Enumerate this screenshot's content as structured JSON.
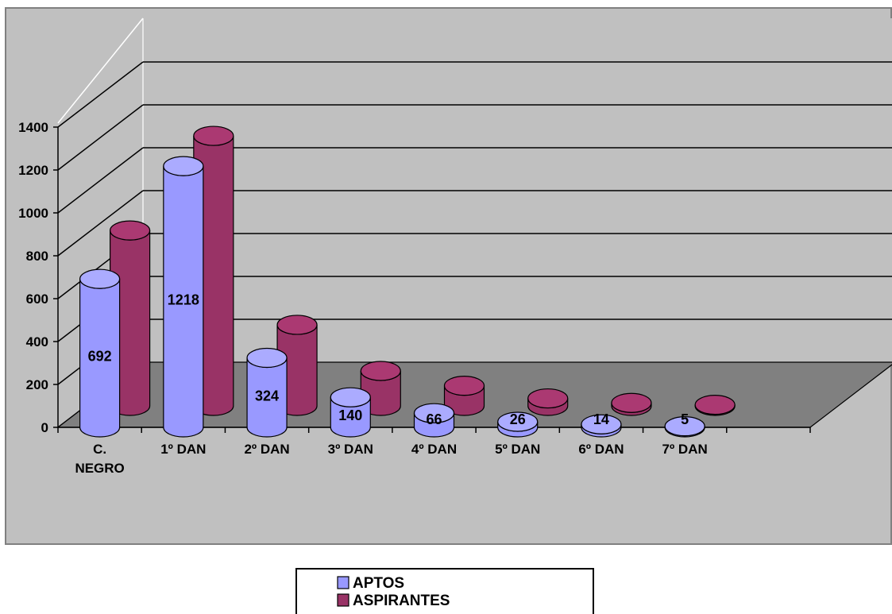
{
  "chart_data": {
    "type": "bar",
    "title": "",
    "xlabel": "",
    "ylabel": "",
    "ylim": [
      0,
      1400
    ],
    "yticks": [
      "0",
      "200",
      "400",
      "600",
      "800",
      "1000",
      "1200",
      "1400"
    ],
    "categories": [
      "C. NEGRO",
      "1º DAN",
      "2º DAN",
      "3º DAN",
      "4º DAN",
      "5º DAN",
      "6º DAN",
      "7º DAN"
    ],
    "series": [
      {
        "name": "APTOS",
        "color": "#9999ff",
        "values": [
          692,
          1218,
          324,
          140,
          66,
          26,
          14,
          5
        ],
        "labels": [
          "692",
          "1218",
          "324",
          "140",
          "66",
          "26",
          "14",
          "5"
        ]
      },
      {
        "name": "ASPIRANTES",
        "color": "#993366",
        "values": [
          818,
          1259,
          378,
          163,
          94,
          35,
          14,
          5
        ],
        "labels": [
          "",
          "",
          "",
          "",
          "",
          "",
          "",
          ""
        ]
      }
    ],
    "legend_position": "bottom-center",
    "grid": true,
    "style": "3d-cylinder",
    "colors": {
      "plot_bg": "#c0c0c0",
      "floor": "#808080",
      "chart_border": "#808080"
    }
  }
}
